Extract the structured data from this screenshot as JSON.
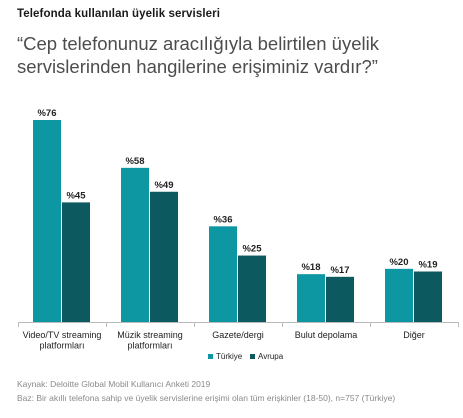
{
  "kicker": "Telefonda kullanılan üyelik servisleri",
  "question": "“Cep telefonunuz aracılığıyla belirtilen üyelik servislerinden hangilerine erişiminiz vardır?”",
  "source": {
    "line1": "Kaynak: Deloitte Global Mobil Kullanıcı Anketi 2019",
    "line2": "Baz: Bir akıllı telefona sahip ve üyelik servislerine erişimi olan tüm erişkinler (18-50), n=757 (Türkiye)"
  },
  "colors": {
    "turkiye": "#0d97a3",
    "avrupa": "#0c5960",
    "axis": "#bbbbbb",
    "text": "#222222"
  },
  "chart_data": {
    "type": "bar",
    "categories": [
      [
        "Video/TV streaming",
        "platformları"
      ],
      [
        "Müzik streaming",
        "platformları"
      ],
      [
        "Gazete/dergi"
      ],
      [
        "Bulut depolama"
      ],
      [
        "Diğer"
      ]
    ],
    "series": [
      {
        "name": "Türkiye",
        "values": [
          76,
          58,
          36,
          18,
          20
        ],
        "labels": [
          "%76",
          "%58",
          "%36",
          "%18",
          "%20"
        ]
      },
      {
        "name": "Avrupa",
        "values": [
          45,
          49,
          25,
          17,
          19
        ],
        "labels": [
          "%45",
          "%49",
          "%25",
          "%17",
          "%19"
        ]
      }
    ],
    "ylim": [
      0,
      76
    ],
    "legend_position": "bottom-center",
    "grid": false
  }
}
